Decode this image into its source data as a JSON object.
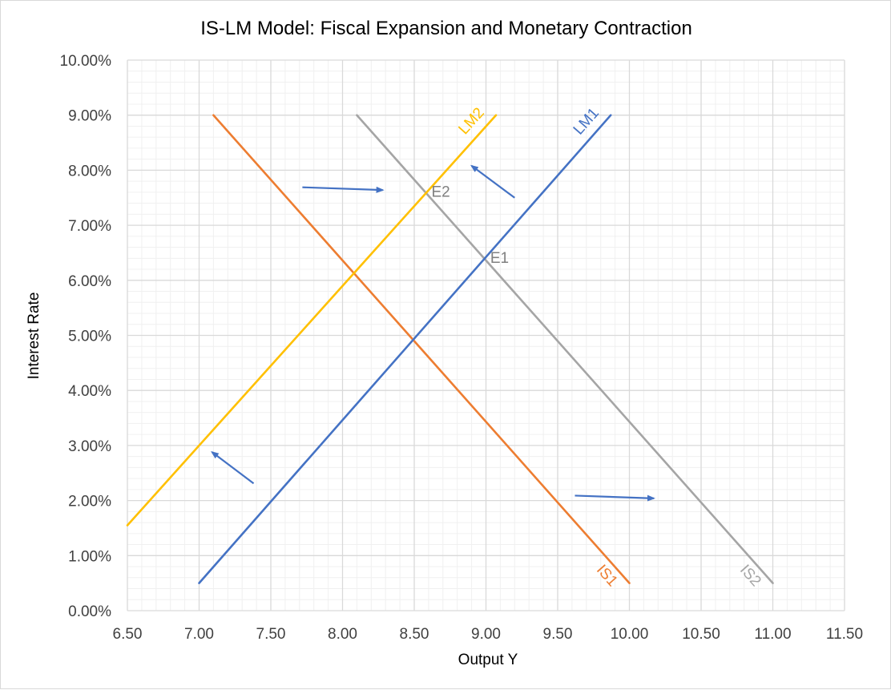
{
  "chart_data": {
    "type": "line",
    "title": "IS-LM Model: Fiscal Expansion and Monetary Contraction",
    "xlabel": "Output Y",
    "ylabel": "Interest Rate",
    "xlim": [
      6.5,
      11.5
    ],
    "ylim": [
      0,
      0.1
    ],
    "x_ticks": [
      "6.50",
      "7.00",
      "7.50",
      "8.00",
      "8.50",
      "9.00",
      "9.50",
      "10.00",
      "10.50",
      "11.00",
      "11.50"
    ],
    "y_ticks": [
      "0.00%",
      "1.00%",
      "2.00%",
      "3.00%",
      "4.00%",
      "5.00%",
      "6.00%",
      "7.00%",
      "8.00%",
      "9.00%",
      "10.00%"
    ],
    "grid": true,
    "legend": "none",
    "series": [
      {
        "name": "IS1",
        "color": "#ed7d31",
        "x": [
          7.1,
          10.0
        ],
        "y": [
          0.09,
          0.005
        ]
      },
      {
        "name": "IS2",
        "color": "#a5a5a5",
        "x": [
          8.1,
          11.0
        ],
        "y": [
          0.09,
          0.005
        ]
      },
      {
        "name": "LM1",
        "color": "#4472c4",
        "x": [
          7.0,
          9.87
        ],
        "y": [
          0.005,
          0.09
        ]
      },
      {
        "name": "LM2",
        "color": "#ffc000",
        "x": [
          6.5,
          9.07
        ],
        "y": [
          0.0155,
          0.09
        ]
      }
    ],
    "annotations": [
      {
        "text": "E1",
        "x": 9.03,
        "y": 0.0632,
        "color": "#7f7f7f"
      },
      {
        "text": "E2",
        "x": 8.62,
        "y": 0.0752,
        "color": "#7f7f7f"
      }
    ],
    "arrows": [
      {
        "from": [
          7.72,
          0.0769
        ],
        "to": [
          8.28,
          0.0764
        ],
        "color": "#4472c4"
      },
      {
        "from": [
          9.2,
          0.075
        ],
        "to": [
          8.9,
          0.0808
        ],
        "color": "#4472c4"
      },
      {
        "from": [
          7.38,
          0.0231
        ],
        "to": [
          7.09,
          0.0288
        ],
        "color": "#4472c4"
      },
      {
        "from": [
          9.62,
          0.0209
        ],
        "to": [
          10.17,
          0.0204
        ],
        "color": "#4472c4"
      }
    ]
  }
}
